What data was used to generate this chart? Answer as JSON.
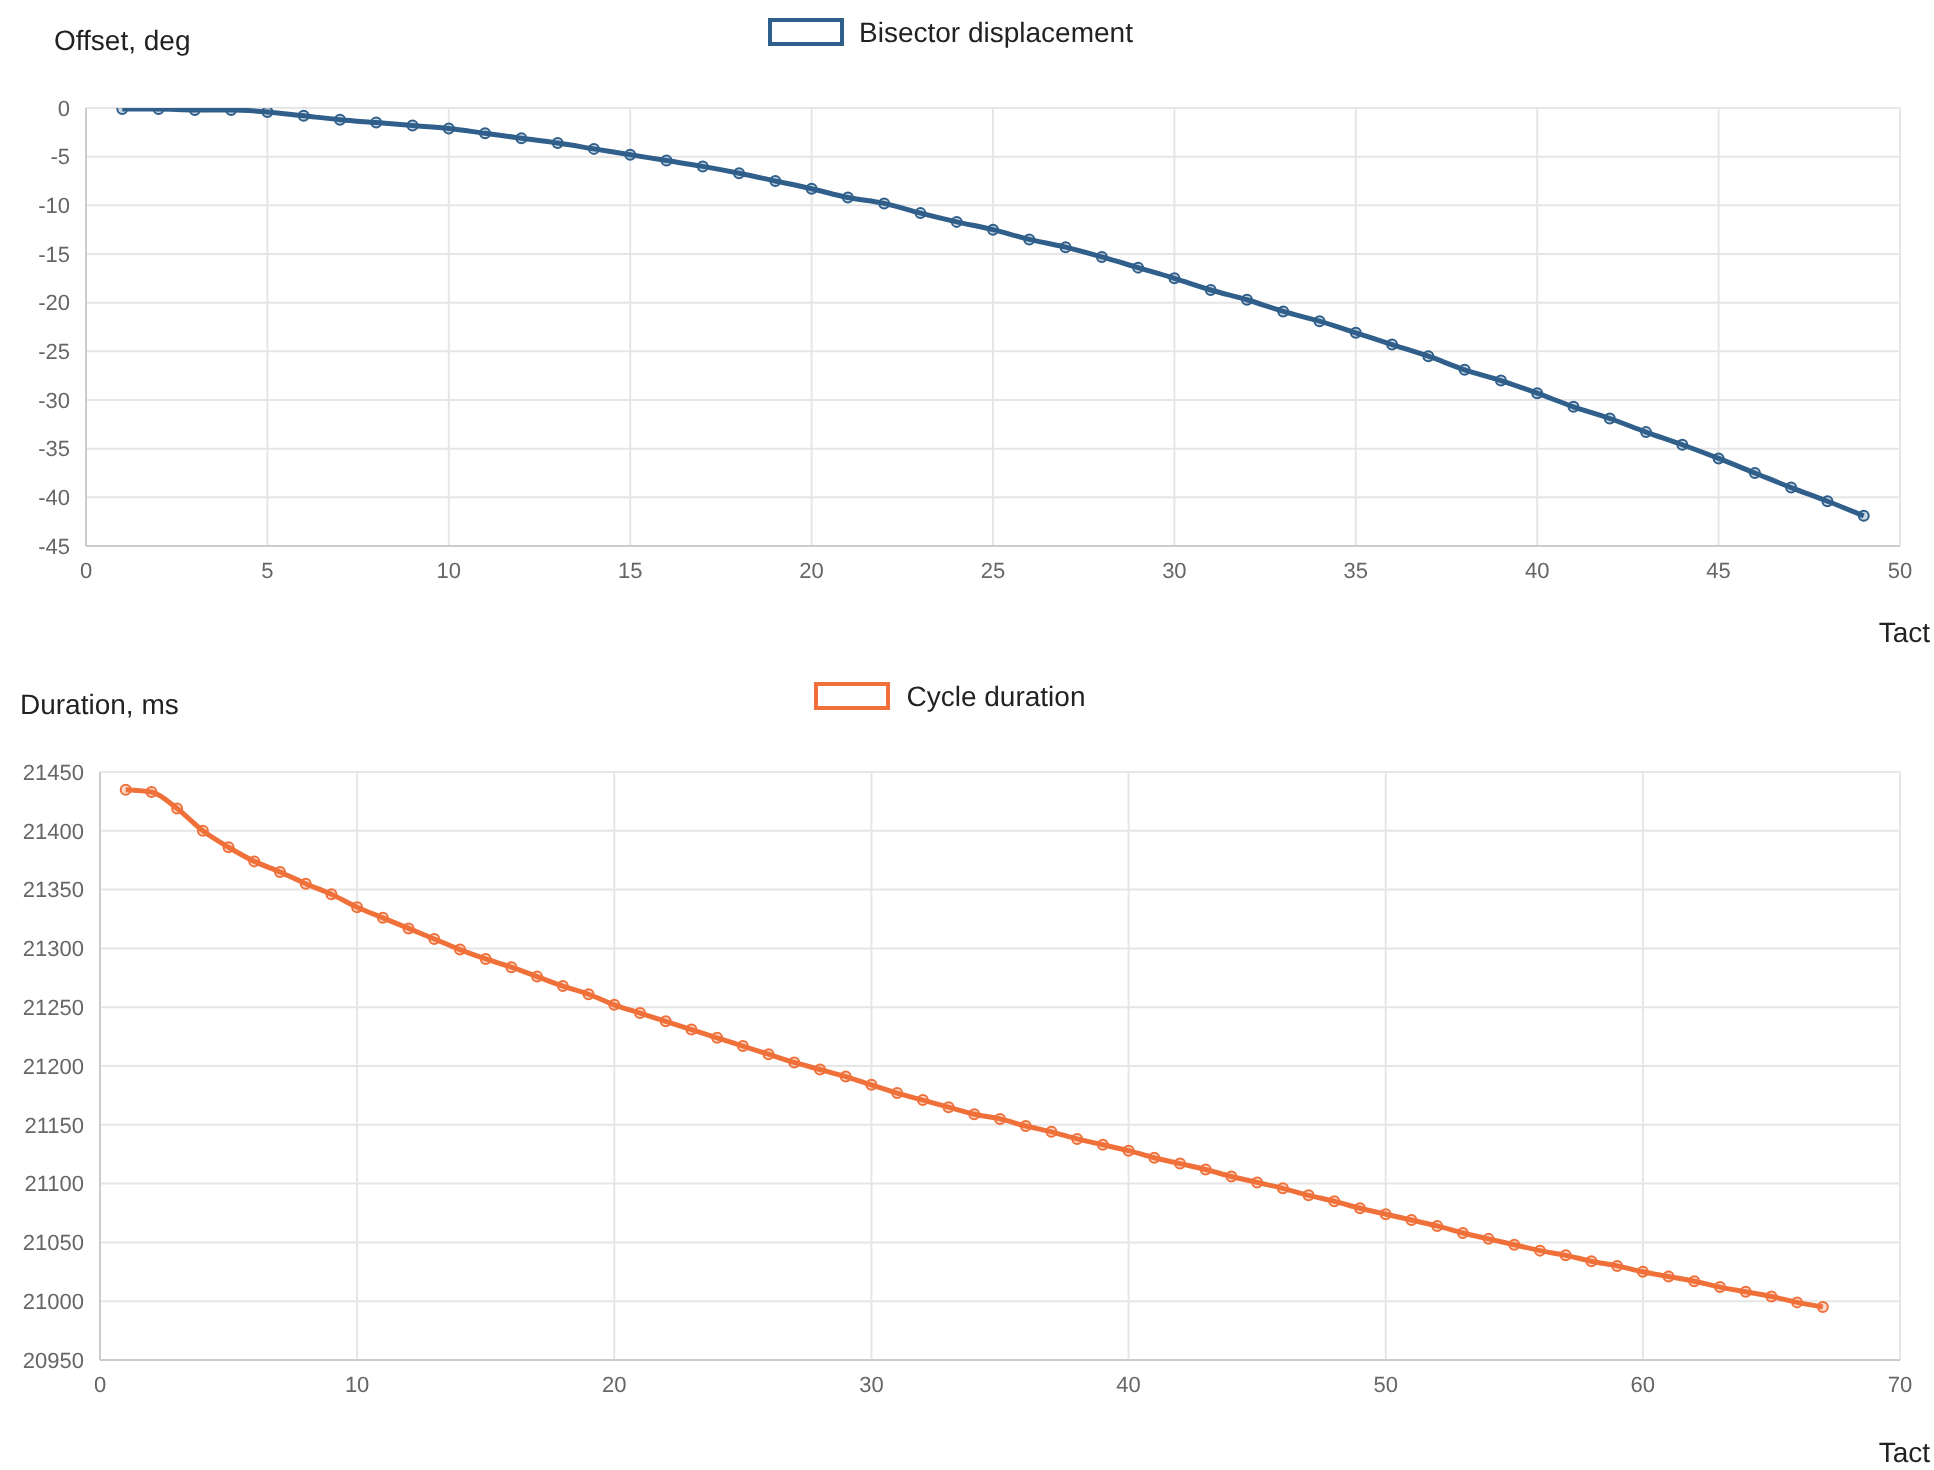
{
  "chart_data": [
    {
      "type": "line",
      "xlabel": "Tact",
      "ylabel": "Offset, deg",
      "x": [
        1,
        2,
        3,
        4,
        5,
        6,
        7,
        8,
        9,
        10,
        11,
        12,
        13,
        14,
        15,
        16,
        17,
        18,
        19,
        20,
        21,
        22,
        23,
        24,
        25,
        26,
        27,
        28,
        29,
        30,
        31,
        32,
        33,
        34,
        35,
        36,
        37,
        38,
        39,
        40,
        41,
        42,
        43,
        44,
        45,
        46,
        47,
        48,
        49
      ],
      "series": [
        {
          "name": "Bisector displacement",
          "color": "#2f5f8a",
          "values": [
            -0.1,
            -0.1,
            -0.2,
            -0.2,
            -0.4,
            -0.8,
            -1.2,
            -1.5,
            -1.8,
            -2.1,
            -2.6,
            -3.1,
            -3.6,
            -4.2,
            -4.8,
            -5.4,
            -6.0,
            -6.7,
            -7.5,
            -8.3,
            -9.2,
            -9.8,
            -10.8,
            -11.7,
            -12.5,
            -13.5,
            -14.3,
            -15.3,
            -16.4,
            -17.5,
            -18.7,
            -19.7,
            -20.9,
            -21.9,
            -23.1,
            -24.3,
            -25.5,
            -26.9,
            -28.0,
            -29.3,
            -30.7,
            -31.9,
            -33.3,
            -34.6,
            -36.0,
            -37.5,
            -39.0,
            -40.4,
            -41.9
          ]
        }
      ],
      "xlim": [
        0,
        50
      ],
      "xticks": [
        0,
        5,
        10,
        15,
        20,
        25,
        30,
        35,
        40,
        45,
        50
      ],
      "ylim": [
        -45,
        0
      ],
      "yticks": [
        -45,
        -40,
        -35,
        -30,
        -25,
        -20,
        -15,
        -10,
        -5,
        0
      ],
      "grid": true,
      "legend": "top",
      "marker": "circle",
      "line_style": "solid"
    },
    {
      "type": "line",
      "xlabel": "Tact",
      "ylabel": "Duration, ms",
      "x": [
        1,
        2,
        3,
        4,
        5,
        6,
        7,
        8,
        9,
        10,
        11,
        12,
        13,
        14,
        15,
        16,
        17,
        18,
        19,
        20,
        21,
        22,
        23,
        24,
        25,
        26,
        27,
        28,
        29,
        30,
        31,
        32,
        33,
        34,
        35,
        36,
        37,
        38,
        39,
        40,
        41,
        42,
        43,
        44,
        45,
        46,
        47,
        48,
        49,
        50,
        51,
        52,
        53,
        54,
        55,
        56,
        57,
        58,
        59,
        60,
        61,
        62,
        63,
        64,
        65,
        66,
        67
      ],
      "series": [
        {
          "name": "Cycle duration",
          "color": "#f0703a",
          "values": [
            21435,
            21433,
            21419,
            21400,
            21386,
            21374,
            21365,
            21355,
            21346,
            21335,
            21326,
            21317,
            21308,
            21299,
            21291,
            21284,
            21276,
            21268,
            21261,
            21252,
            21245,
            21238,
            21231,
            21224,
            21217,
            21210,
            21203,
            21197,
            21191,
            21184,
            21177,
            21171,
            21165,
            21159,
            21155,
            21149,
            21144,
            21138,
            21133,
            21128,
            21122,
            21117,
            21112,
            21106,
            21101,
            21096,
            21090,
            21085,
            21079,
            21074,
            21069,
            21064,
            21058,
            21053,
            21048,
            21043,
            21039,
            21034,
            21030,
            21025,
            21021,
            21017,
            21012,
            21008,
            21004,
            20999,
            20995
          ]
        }
      ],
      "xlim": [
        0,
        70
      ],
      "xticks": [
        0,
        10,
        20,
        30,
        40,
        50,
        60,
        70
      ],
      "ylim": [
        20950,
        21450
      ],
      "yticks": [
        20950,
        21000,
        21050,
        21100,
        21150,
        21200,
        21250,
        21300,
        21350,
        21400,
        21450
      ],
      "grid": true,
      "legend": "top",
      "marker": "circle",
      "line_style": "solid"
    }
  ]
}
